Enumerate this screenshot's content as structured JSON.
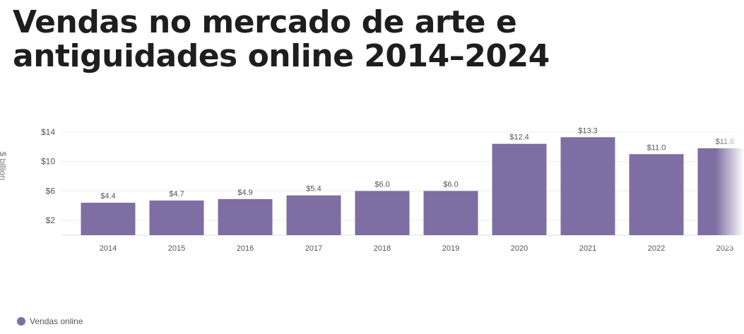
{
  "title": "Vendas no mercado de arte e antiguidades online 2014–2024",
  "chart_data": {
    "type": "bar",
    "title": "Vendas no mercado de arte e antiguidades online 2014–2024",
    "ylabel": "$ billion",
    "xlabel": "",
    "categories": [
      "2014",
      "2015",
      "2016",
      "2017",
      "2018",
      "2019",
      "2020",
      "2021",
      "2022",
      "2023"
    ],
    "series": [
      {
        "name": "Vendas online",
        "values": [
          4.4,
          4.7,
          4.9,
          5.4,
          6.0,
          6.0,
          12.4,
          13.3,
          11.0,
          11.8
        ],
        "labels": [
          "$4.4",
          "$4.7",
          "$4.9",
          "$5.4",
          "$6.0",
          "$6.0",
          "$12.4",
          "$13.3",
          "$11.0",
          "$11.8"
        ],
        "color": "#7f6ea3"
      }
    ],
    "ylim": [
      0,
      14
    ],
    "yticks": [
      2,
      6,
      10,
      14
    ],
    "ytick_labels": [
      "$2",
      "$6",
      "$10",
      "$14"
    ],
    "grid": true,
    "legend_position": "bottom-left"
  },
  "legend": {
    "label": "Vendas online",
    "color": "#7f6ea3"
  }
}
